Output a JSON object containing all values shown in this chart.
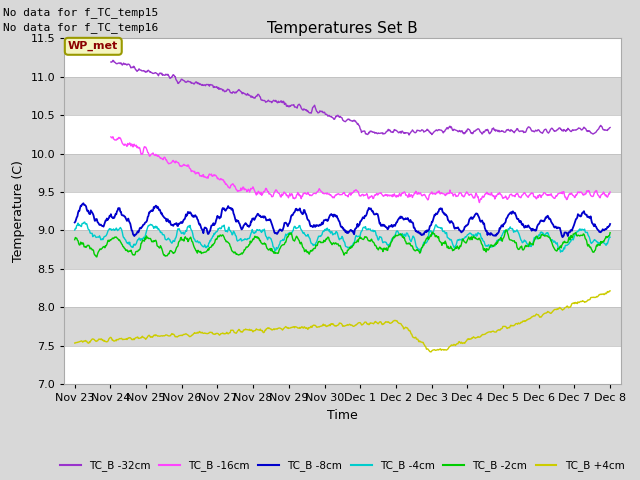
{
  "title": "Temperatures Set B",
  "xlabel": "Time",
  "ylabel": "Temperature (C)",
  "ylim": [
    7.0,
    11.5
  ],
  "no_data_text": [
    "No data for f_TC_temp15",
    "No data for f_TC_temp16"
  ],
  "wp_met_label": "WP_met",
  "background_color": "#d8d8d8",
  "plot_bg_color": "#d8d8d8",
  "tick_labels": [
    "Nov 23",
    "Nov 24",
    "Nov 25",
    "Nov 26",
    "Nov 27",
    "Nov 28",
    "Nov 29",
    "Nov 30",
    "Dec 1",
    "Dec 2",
    "Dec 3",
    "Dec 4",
    "Dec 5",
    "Dec 6",
    "Dec 7",
    "Dec 8"
  ],
  "tick_positions": [
    0,
    1,
    2,
    3,
    4,
    5,
    6,
    7,
    8,
    9,
    10,
    11,
    12,
    13,
    14,
    15
  ],
  "yticks": [
    7.0,
    7.5,
    8.0,
    8.5,
    9.0,
    9.5,
    10.0,
    10.5,
    11.0,
    11.5
  ],
  "series_colors": [
    "#9933cc",
    "#ff44ff",
    "#0000cc",
    "#00cccc",
    "#00cc00",
    "#cccc00"
  ],
  "series_labels": [
    "TC_B -32cm",
    "TC_B -16cm",
    "TC_B -8cm",
    "TC_B -4cm",
    "TC_B -2cm",
    "TC_B +4cm"
  ]
}
